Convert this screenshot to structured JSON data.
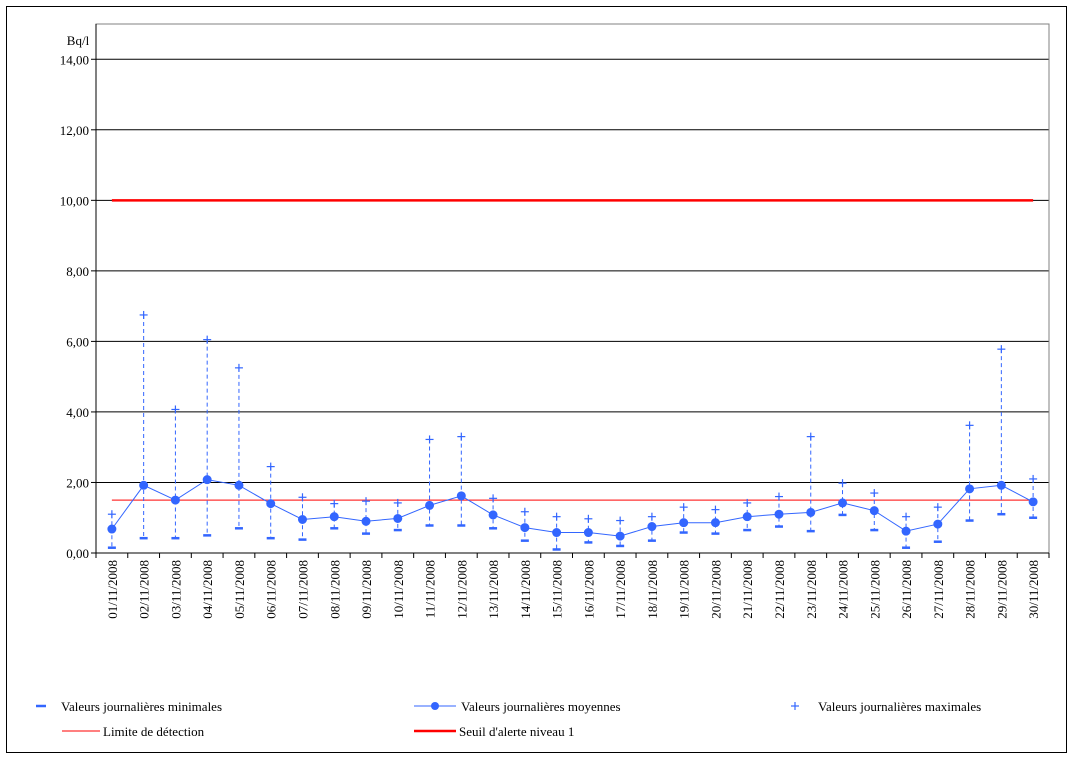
{
  "chart_data": {
    "type": "line",
    "ylabel": "Bq/l",
    "ylim": [
      0,
      15
    ],
    "yticks": [
      "0,00",
      "2,00",
      "4,00",
      "6,00",
      "8,00",
      "10,00",
      "12,00",
      "14,00"
    ],
    "ytick_values": [
      0,
      2,
      4,
      6,
      8,
      10,
      12,
      14
    ],
    "grid": true,
    "categories": [
      "01/11/2008",
      "02/11/2008",
      "03/11/2008",
      "04/11/2008",
      "05/11/2008",
      "06/11/2008",
      "07/11/2008",
      "08/11/2008",
      "09/11/2008",
      "10/11/2008",
      "11/11/2008",
      "12/11/2008",
      "13/11/2008",
      "14/11/2008",
      "15/11/2008",
      "16/11/2008",
      "17/11/2008",
      "18/11/2008",
      "19/11/2008",
      "20/11/2008",
      "21/11/2008",
      "22/11/2008",
      "23/11/2008",
      "24/11/2008",
      "25/11/2008",
      "26/11/2008",
      "27/11/2008",
      "28/11/2008",
      "29/11/2008",
      "30/11/2008"
    ],
    "series": [
      {
        "name": "Valeurs journalières minimales",
        "marker": "dash",
        "color": "#3366ff",
        "values": [
          0.15,
          0.42,
          0.42,
          0.5,
          0.7,
          0.42,
          0.38,
          0.7,
          0.55,
          0.65,
          0.78,
          0.78,
          0.7,
          0.35,
          0.1,
          0.3,
          0.2,
          0.35,
          0.58,
          0.55,
          0.65,
          0.75,
          0.62,
          1.08,
          0.65,
          0.15,
          0.32,
          0.92,
          1.1,
          1.0
        ]
      },
      {
        "name": "Valeurs journalières moyennes",
        "marker": "circle-line",
        "color": "#3366ff",
        "values": [
          0.68,
          1.92,
          1.5,
          2.08,
          1.92,
          1.4,
          0.95,
          1.03,
          0.9,
          0.98,
          1.35,
          1.62,
          1.08,
          0.72,
          0.58,
          0.58,
          0.48,
          0.75,
          0.86,
          0.86,
          1.03,
          1.1,
          1.15,
          1.42,
          1.2,
          0.62,
          0.82,
          1.82,
          1.92,
          1.45
        ]
      },
      {
        "name": "Valeurs journalières maximales",
        "marker": "plus",
        "color": "#3366ff",
        "values": [
          1.1,
          6.75,
          4.07,
          6.05,
          5.25,
          2.45,
          1.58,
          1.4,
          1.47,
          1.42,
          3.22,
          3.3,
          1.55,
          1.17,
          1.03,
          0.97,
          0.92,
          1.03,
          1.3,
          1.23,
          1.42,
          1.6,
          3.3,
          1.98,
          1.7,
          1.03,
          1.3,
          3.62,
          5.78,
          2.1
        ]
      },
      {
        "name": "Limite de détection",
        "marker": "line",
        "color": "#ff3333",
        "value": 1.5
      },
      {
        "name": "Seuil d'alerte niveau 1",
        "marker": "thick-line",
        "color": "#ff0000",
        "value": 10.0
      }
    ]
  }
}
